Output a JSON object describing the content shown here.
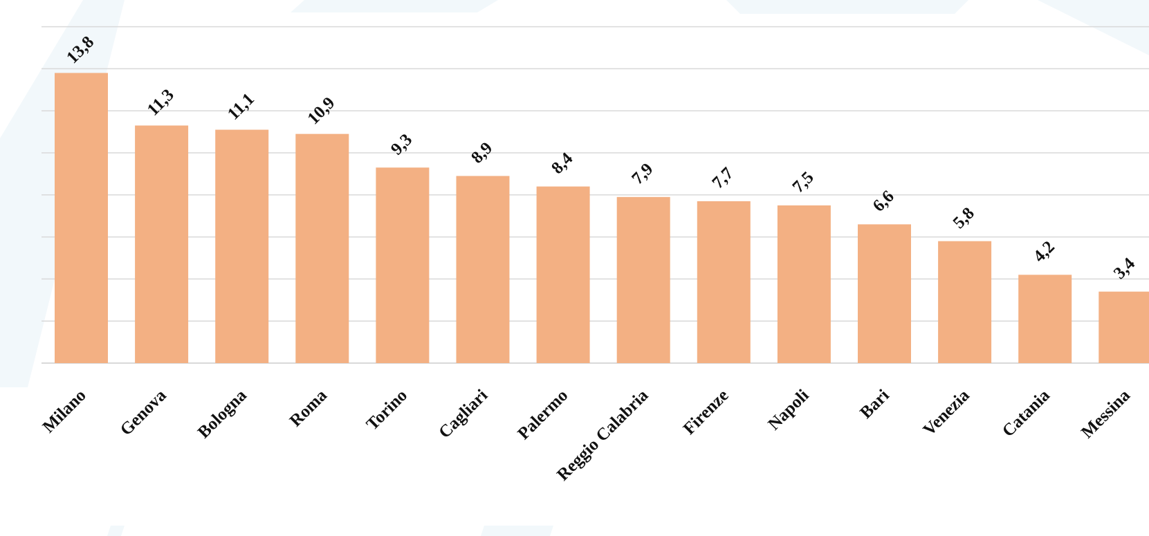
{
  "chart_data": {
    "type": "bar",
    "categories": [
      "Milano",
      "Genova",
      "Bologna",
      "Roma",
      "Torino",
      "Cagliari",
      "Palermo",
      "Reggio Calabria",
      "Firenze",
      "Napoli",
      "Bari",
      "Venezia",
      "Catania",
      "Messina"
    ],
    "values": [
      13.8,
      11.3,
      11.1,
      10.9,
      9.3,
      8.9,
      8.4,
      7.9,
      7.7,
      7.5,
      6.6,
      5.8,
      4.2,
      3.4
    ],
    "value_labels": [
      "13,8",
      "11,3",
      "11,1",
      "10,9",
      "9,3",
      "8,9",
      "8,4",
      "7,9",
      "7,7",
      "7,5",
      "6,6",
      "5,8",
      "4,2",
      "3,4"
    ],
    "title": "",
    "xlabel": "",
    "ylabel": "",
    "ylim": [
      0,
      16
    ],
    "grid": true,
    "legend": "none",
    "bar_color": "#f3b083",
    "grid_color": "#d9d9d9"
  },
  "watermark_color": "#f2f8fb"
}
